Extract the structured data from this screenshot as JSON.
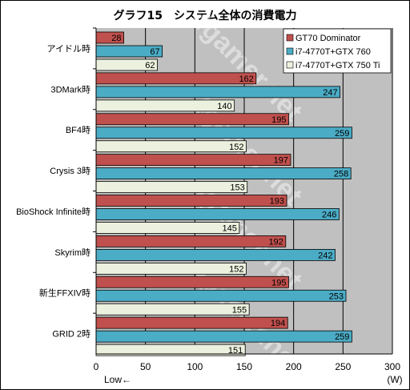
{
  "chart_data": {
    "type": "bar",
    "orientation": "horizontal",
    "title": "グラフ15　システム全体の消費電力",
    "categories": [
      "アイドル時",
      "3DMark時",
      "BF4時",
      "Crysis 3時",
      "BioShock Infinite時",
      "Skyrim時",
      "新生FFXIV時",
      "GRID 2時"
    ],
    "series": [
      {
        "name": "GT70 Dominator",
        "color": "#c0504d",
        "values": [
          28,
          162,
          195,
          197,
          193,
          192,
          195,
          194
        ]
      },
      {
        "name": "i7-4770T+GTX 760",
        "color": "#4bacc6",
        "values": [
          67,
          247,
          259,
          258,
          246,
          242,
          253,
          259
        ]
      },
      {
        "name": "i7-4770T+GTX 750 Ti",
        "color": "#ebf1de",
        "values": [
          62,
          140,
          152,
          153,
          145,
          152,
          155,
          151
        ]
      }
    ],
    "xlim": [
      0,
      300
    ],
    "xticks": [
      0,
      50,
      100,
      150,
      200,
      250,
      300
    ],
    "xunit": "(W)",
    "low_label": "Low←",
    "watermark": "4gamer.net",
    "grid": true,
    "legend_position": "top-right"
  }
}
